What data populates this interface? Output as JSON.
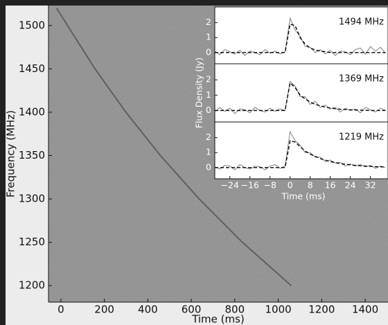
{
  "chart_data": [
    {
      "type": "waterfall",
      "x_label": "Time (ms)",
      "y_label": "Frequency (MHz)",
      "xlim": [
        -57,
        1505
      ],
      "ylim": [
        1181,
        1523
      ],
      "xticks": [
        0,
        200,
        400,
        600,
        800,
        1000,
        1200,
        1400
      ],
      "yticks": [
        1200,
        1250,
        1300,
        1350,
        1400,
        1450,
        1500
      ],
      "sweep": {
        "color": "#333333",
        "time": [
          -20,
          157,
          299,
          458,
          636,
          835,
          1060
        ],
        "frequency": [
          1520,
          1450,
          1400,
          1350,
          1300,
          1250,
          1200
        ]
      }
    },
    {
      "type": "line",
      "x_label": "Time (ms)",
      "y_label": "Flux Density (Jy)",
      "xlim": [
        -30,
        39
      ],
      "ylim": [
        -0.75,
        3.05
      ],
      "xticks": [
        {
          "value": -24,
          "label": "−24"
        },
        {
          "value": -16,
          "label": "−16"
        },
        {
          "value": -8,
          "label": "−8"
        },
        0,
        8,
        16,
        24,
        32
      ],
      "yticks": [
        0,
        1,
        2
      ],
      "x": [
        -30,
        -28,
        -26,
        -24,
        -22,
        -20,
        -18,
        -16,
        -14,
        -12,
        -10,
        -8,
        -6,
        -4,
        -2,
        0,
        2,
        4,
        6,
        8,
        10,
        12,
        14,
        16,
        18,
        20,
        22,
        24,
        26,
        28,
        30,
        32,
        34,
        36,
        38
      ],
      "panels": [
        {
          "label": "1494 MHz",
          "series": [
            {
              "color": "#8a8a8a",
              "style": "solid",
              "values": [
                0.1,
                -0.15,
                0.2,
                0.05,
                -0.1,
                0.15,
                -0.2,
                0.1,
                0.0,
                -0.15,
                0.2,
                -0.05,
                0.1,
                -0.1,
                0.05,
                2.3,
                1.5,
                1.1,
                0.4,
                0.35,
                0.0,
                0.2,
                -0.1,
                0.15,
                -0.2,
                0.1,
                0.05,
                -0.15,
                0.2,
                0.3,
                -0.1,
                0.4,
                0.1,
                0.35,
                -0.05
              ]
            },
            {
              "color": "#000000",
              "style": "dashed",
              "values": [
                0,
                0,
                0,
                0,
                0,
                0,
                0,
                0,
                0,
                0,
                0,
                0,
                0,
                0,
                0,
                1.9,
                1.8,
                1.0,
                0.55,
                0.3,
                0.17,
                0.1,
                0.05,
                0,
                0,
                0,
                0,
                0,
                0,
                0,
                0,
                0,
                0,
                0,
                0
              ]
            }
          ]
        },
        {
          "label": "1369 MHz",
          "series": [
            {
              "color": "#8a8a8a",
              "style": "solid",
              "values": [
                -0.1,
                0.2,
                -0.05,
                0.15,
                -0.2,
                0.1,
                0.05,
                -0.15,
                0.2,
                0.0,
                -0.1,
                0.15,
                -0.05,
                0.1,
                0.0,
                1.9,
                1.6,
                0.9,
                0.9,
                0.4,
                0.6,
                0.2,
                0.35,
                0.1,
                0.2,
                -0.1,
                0.15,
                0.0,
                0.1,
                -0.15,
                0.2,
                0.05,
                -0.1,
                0.15,
                0.0
              ]
            },
            {
              "color": "#000000",
              "style": "dashed",
              "values": [
                0,
                0,
                0,
                0,
                0,
                0,
                0,
                0,
                0,
                0,
                0,
                0,
                0,
                0,
                0,
                1.8,
                1.5,
                1.0,
                0.75,
                0.55,
                0.4,
                0.3,
                0.22,
                0.16,
                0.12,
                0.08,
                0.06,
                0.04,
                0.03,
                0.02,
                0.01,
                0,
                0,
                0,
                0
              ]
            }
          ]
        },
        {
          "label": "1219 MHz",
          "series": [
            {
              "color": "#8a8a8a",
              "style": "solid",
              "values": [
                0.05,
                -0.1,
                0.15,
                0.1,
                -0.15,
                0.2,
                0.0,
                -0.1,
                0.1,
                0.05,
                -0.15,
                0.1,
                0.2,
                -0.05,
                0.1,
                2.4,
                1.8,
                1.5,
                1.0,
                1.0,
                0.7,
                0.7,
                0.4,
                0.5,
                0.3,
                0.35,
                0.1,
                0.25,
                0.1,
                0.2,
                0.05,
                0.15,
                -0.05,
                0.1,
                0.0
              ]
            },
            {
              "color": "#000000",
              "style": "dashed",
              "values": [
                0,
                0,
                0,
                0,
                0,
                0,
                0,
                0,
                0,
                0,
                0,
                0,
                0,
                0,
                0,
                1.8,
                1.7,
                1.4,
                1.1,
                0.9,
                0.75,
                0.6,
                0.5,
                0.4,
                0.33,
                0.27,
                0.22,
                0.18,
                0.15,
                0.12,
                0.1,
                0.08,
                0.06,
                0.05,
                0.04
              ]
            }
          ]
        }
      ]
    }
  ]
}
